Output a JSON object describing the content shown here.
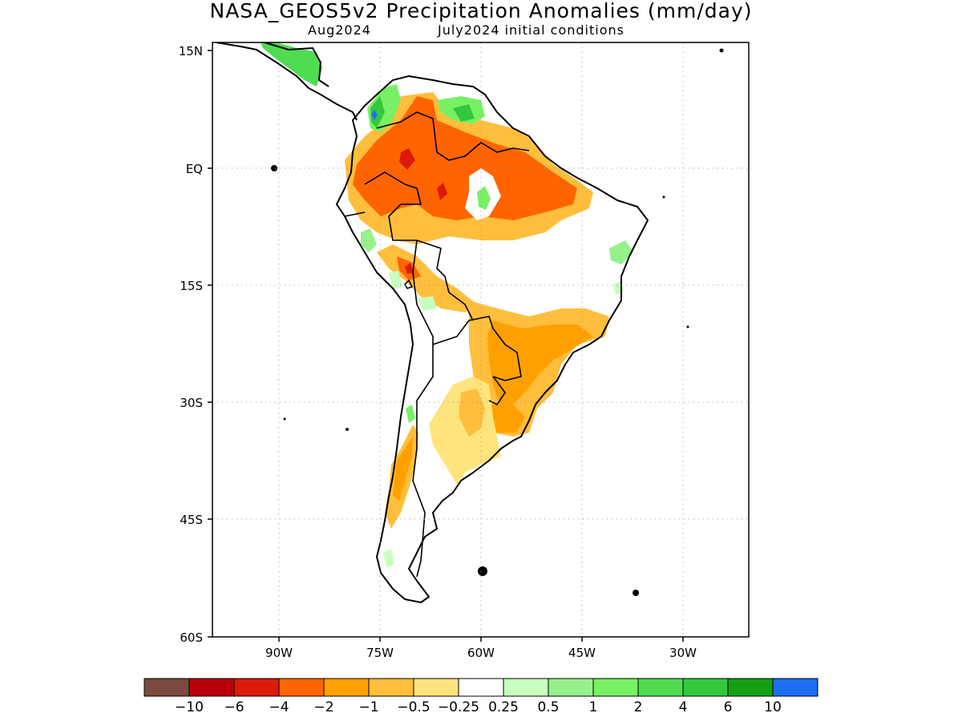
{
  "title": "NASA_GEOS5v2 Precipitation Anomalies (mm/day)",
  "subtitle_left": "Aug2024",
  "subtitle_right": "July2024 initial conditions",
  "lat_labels": [
    "15N",
    "EQ",
    "15S",
    "30S",
    "45S",
    "60S"
  ],
  "lon_labels": [
    "90W",
    "75W",
    "60W",
    "45W",
    "30W"
  ],
  "colorbar": {
    "labels": [
      "-10",
      "-6",
      "-4",
      "-2",
      "-1",
      "-0.5",
      "-0.25",
      "0.25",
      "0.5",
      "1",
      "2",
      "4",
      "6",
      "10"
    ],
    "colors": [
      "#7a4a3e",
      "#b8000a",
      "#dc1a0a",
      "#ff6400",
      "#ffa000",
      "#ffbe3c",
      "#ffe47e",
      "#ffffff",
      "#c8ffbe",
      "#96f08c",
      "#78f064",
      "#50dc50",
      "#32c83c",
      "#14a014",
      "#1e6ef0"
    ]
  },
  "colors": {
    "dry_strong": "#dc1a0a",
    "dry_mid": "#ff6400",
    "dry": "#ffa000",
    "dry_light": "#ffbe3c",
    "dry_faint": "#ffe47e",
    "wet_faint": "#c8ffbe",
    "wet": "#78f064",
    "wet_strong": "#32c83c",
    "wet_max": "#1e6ef0"
  }
}
